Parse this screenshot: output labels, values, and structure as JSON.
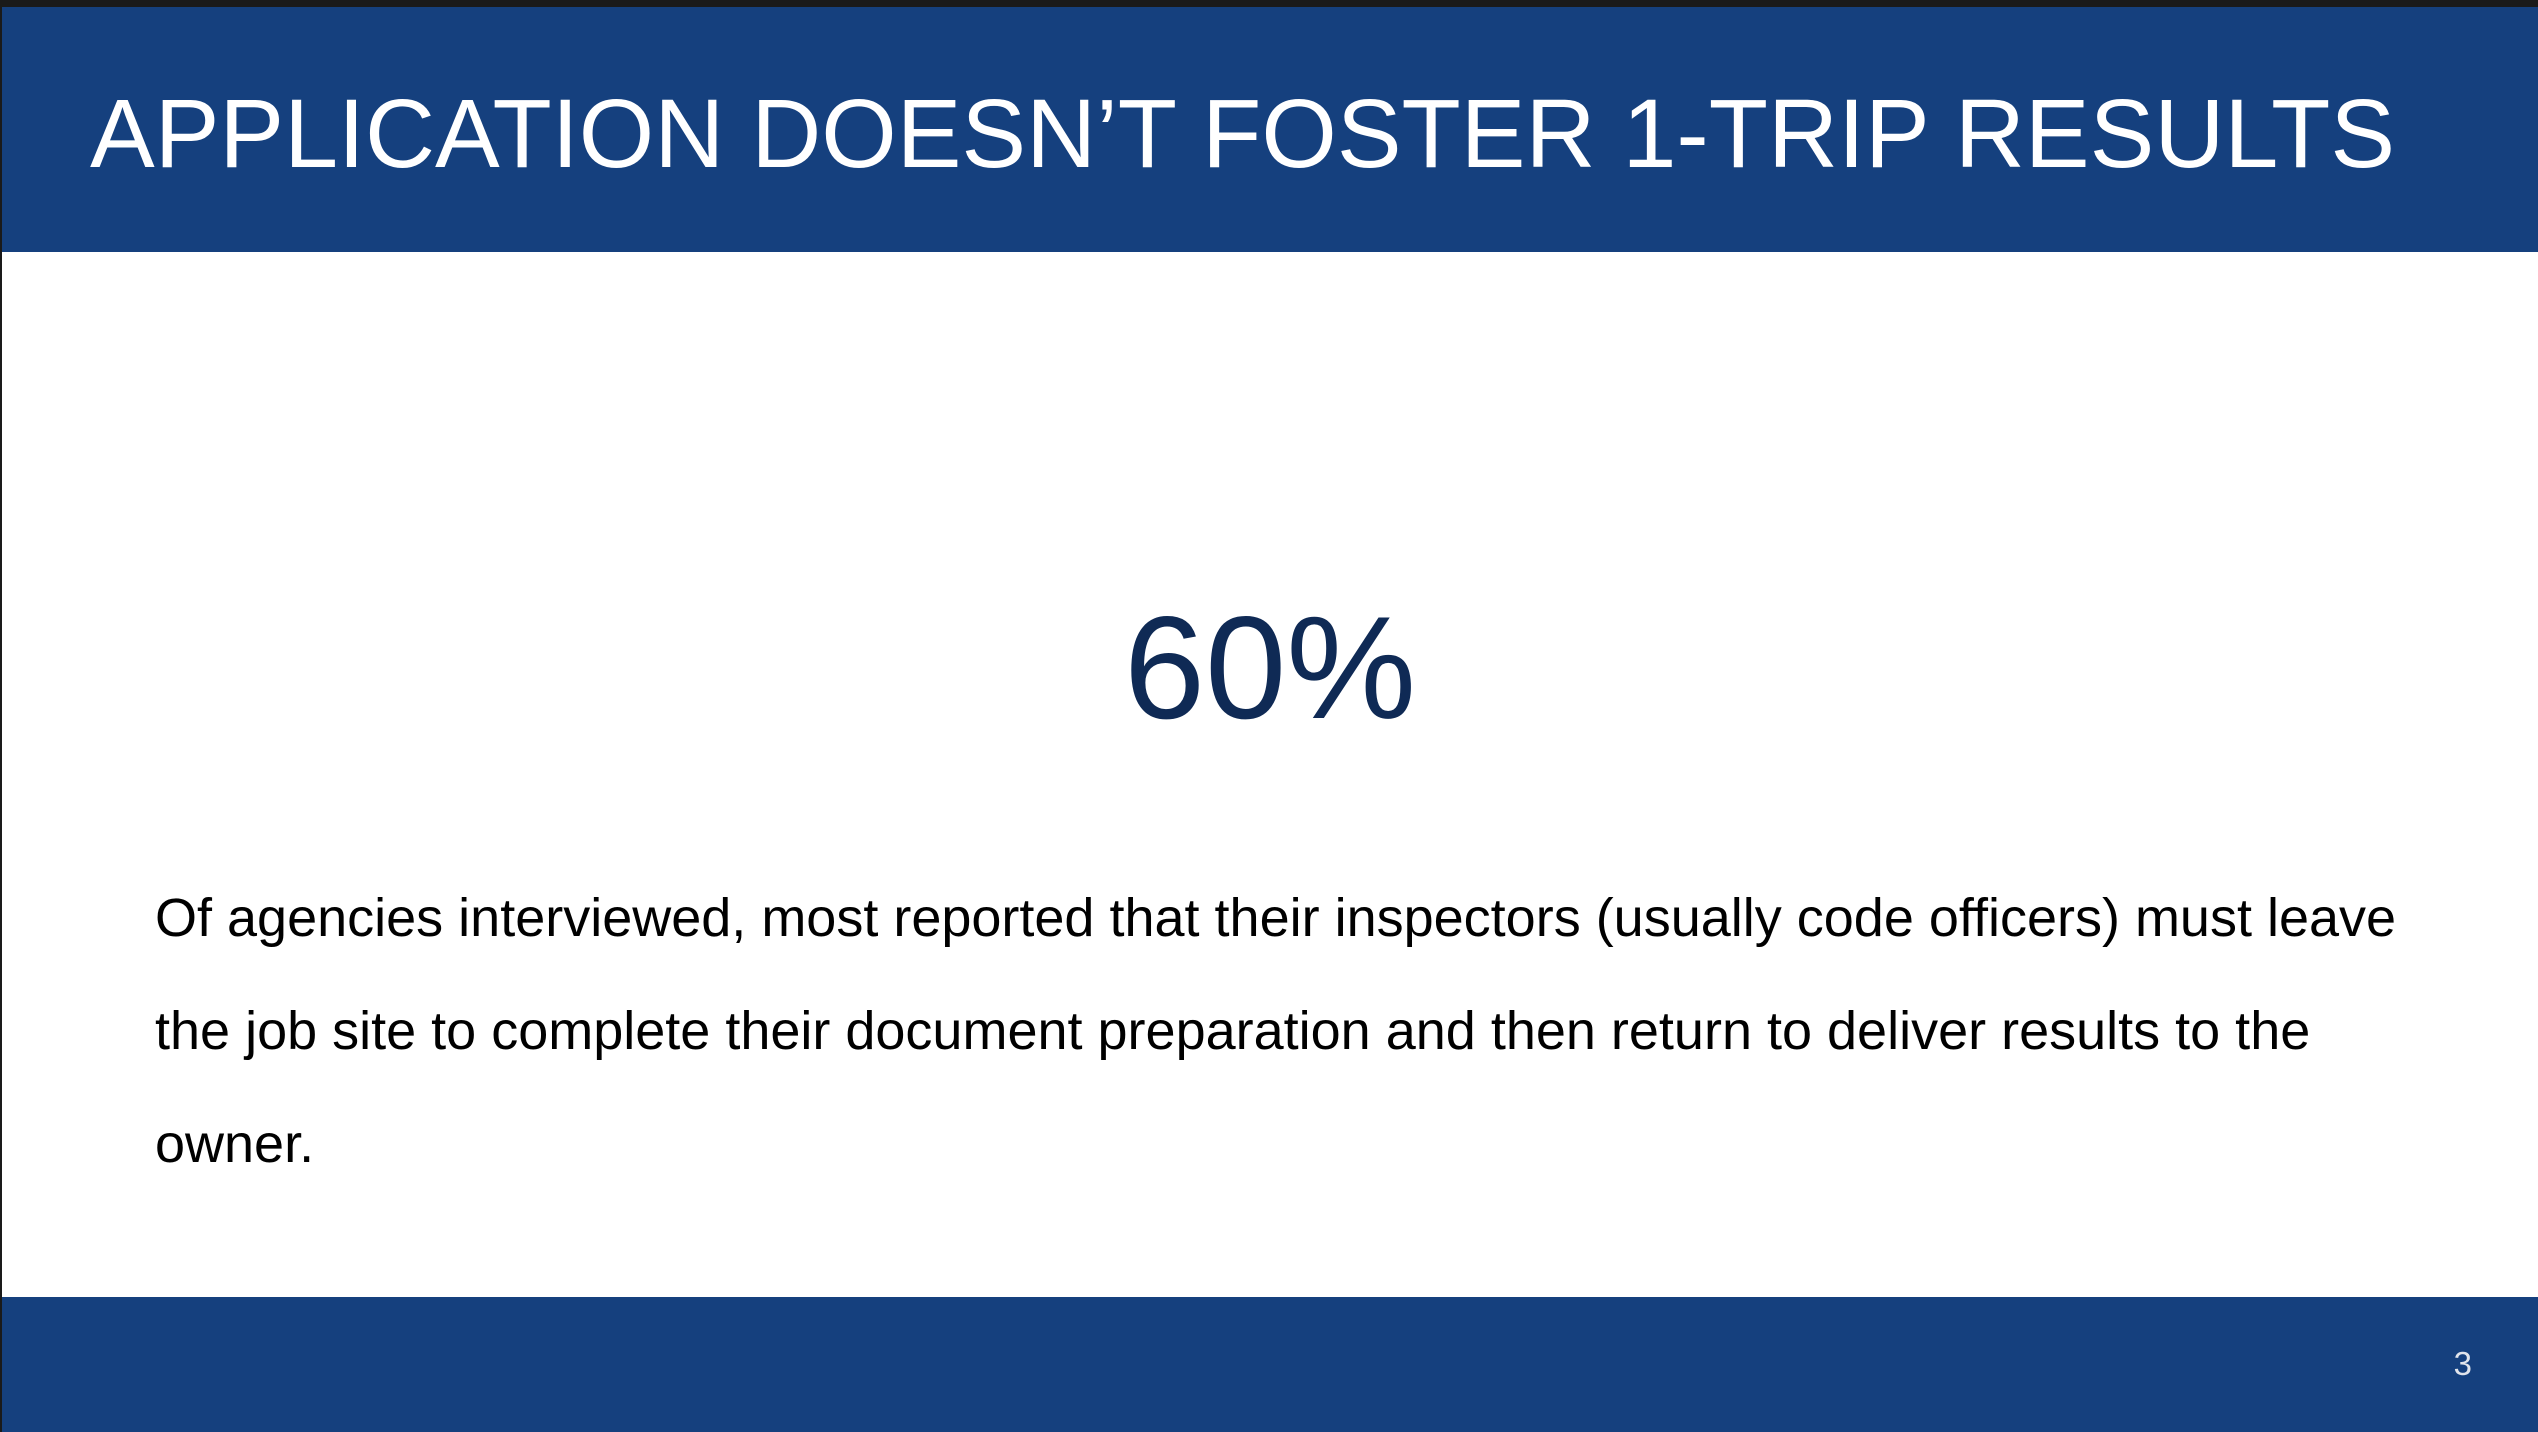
{
  "slide": {
    "title": "APPLICATION DOESN’T FOSTER 1-TRIP RESULTS",
    "stat": "60%",
    "body": "Of agencies interviewed, most reported that their inspectors (usually code officers) must leave the job site to complete their document preparation and then return to deliver results to the owner.",
    "page_number": "3"
  },
  "colors": {
    "header": "#15407e",
    "stat": "#0f2a55"
  }
}
